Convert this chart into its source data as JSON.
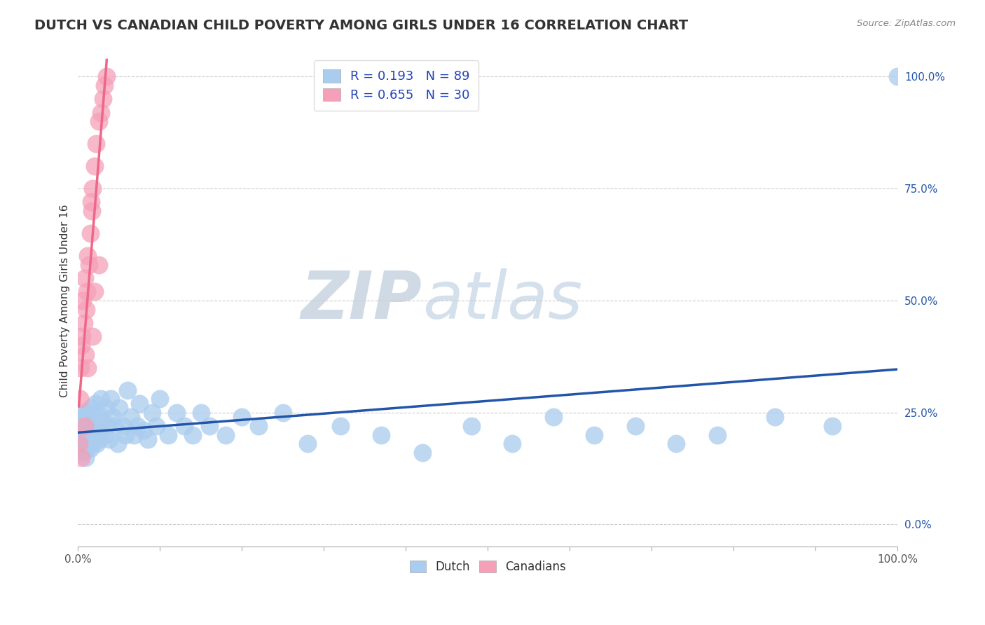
{
  "title": "DUTCH VS CANADIAN CHILD POVERTY AMONG GIRLS UNDER 16 CORRELATION CHART",
  "source": "Source: ZipAtlas.com",
  "ylabel": "Child Poverty Among Girls Under 16",
  "legend_dutch": "Dutch",
  "legend_canadians": "Canadians",
  "R_dutch": 0.193,
  "N_dutch": 89,
  "R_canadian": 0.655,
  "N_canadian": 30,
  "dutch_color": "#aaccee",
  "canadian_color": "#f5a0b8",
  "dutch_line_color": "#2255aa",
  "canadian_line_color": "#ee6688",
  "watermark_zip": "ZIP",
  "watermark_atlas": "atlas",
  "background_color": "#ffffff",
  "dutch_x": [
    0.001,
    0.002,
    0.002,
    0.003,
    0.003,
    0.003,
    0.004,
    0.004,
    0.005,
    0.005,
    0.005,
    0.006,
    0.006,
    0.007,
    0.007,
    0.008,
    0.008,
    0.008,
    0.009,
    0.009,
    0.01,
    0.01,
    0.011,
    0.011,
    0.012,
    0.012,
    0.013,
    0.014,
    0.015,
    0.015,
    0.016,
    0.017,
    0.018,
    0.018,
    0.019,
    0.02,
    0.021,
    0.022,
    0.023,
    0.024,
    0.025,
    0.026,
    0.028,
    0.03,
    0.032,
    0.034,
    0.035,
    0.038,
    0.04,
    0.042,
    0.045,
    0.048,
    0.05,
    0.055,
    0.058,
    0.06,
    0.065,
    0.068,
    0.072,
    0.075,
    0.08,
    0.085,
    0.09,
    0.095,
    0.1,
    0.11,
    0.12,
    0.13,
    0.14,
    0.15,
    0.16,
    0.18,
    0.2,
    0.22,
    0.25,
    0.28,
    0.32,
    0.37,
    0.42,
    0.48,
    0.53,
    0.58,
    0.63,
    0.68,
    0.73,
    0.78,
    0.85,
    0.92,
    1.0
  ],
  "dutch_y": [
    0.19,
    0.21,
    0.18,
    0.23,
    0.2,
    0.17,
    0.24,
    0.19,
    0.22,
    0.16,
    0.25,
    0.2,
    0.17,
    0.23,
    0.19,
    0.21,
    0.18,
    0.24,
    0.2,
    0.15,
    0.22,
    0.19,
    0.21,
    0.17,
    0.25,
    0.19,
    0.22,
    0.2,
    0.23,
    0.17,
    0.26,
    0.2,
    0.24,
    0.18,
    0.22,
    0.2,
    0.27,
    0.21,
    0.18,
    0.25,
    0.22,
    0.19,
    0.28,
    0.23,
    0.2,
    0.26,
    0.22,
    0.19,
    0.28,
    0.24,
    0.22,
    0.18,
    0.26,
    0.22,
    0.2,
    0.3,
    0.24,
    0.2,
    0.22,
    0.27,
    0.21,
    0.19,
    0.25,
    0.22,
    0.28,
    0.2,
    0.25,
    0.22,
    0.2,
    0.25,
    0.22,
    0.2,
    0.24,
    0.22,
    0.25,
    0.18,
    0.22,
    0.2,
    0.16,
    0.22,
    0.18,
    0.24,
    0.2,
    0.22,
    0.18,
    0.2,
    0.24,
    0.22,
    1.0
  ],
  "canadian_x": [
    0.001,
    0.002,
    0.003,
    0.004,
    0.005,
    0.006,
    0.007,
    0.008,
    0.009,
    0.01,
    0.011,
    0.012,
    0.013,
    0.015,
    0.016,
    0.017,
    0.018,
    0.02,
    0.022,
    0.025,
    0.028,
    0.03,
    0.032,
    0.035,
    0.018,
    0.02,
    0.025,
    0.012,
    0.008,
    0.004
  ],
  "canadian_y": [
    0.18,
    0.28,
    0.35,
    0.4,
    0.42,
    0.5,
    0.45,
    0.55,
    0.38,
    0.48,
    0.52,
    0.6,
    0.58,
    0.65,
    0.72,
    0.7,
    0.75,
    0.8,
    0.85,
    0.9,
    0.92,
    0.95,
    0.98,
    1.0,
    0.42,
    0.52,
    0.58,
    0.35,
    0.22,
    0.15
  ],
  "xlim": [
    0.0,
    1.0
  ],
  "ylim": [
    -0.05,
    1.05
  ],
  "ytick_positions": [
    0.0,
    0.25,
    0.5,
    0.75,
    1.0
  ],
  "ytick_labels": [
    "0.0%",
    "25.0%",
    "50.0%",
    "75.0%",
    "100.0%"
  ],
  "xtick_positions": [
    0.0,
    0.1,
    0.2,
    0.3,
    0.4,
    0.5,
    0.6,
    0.7,
    0.8,
    0.9,
    1.0
  ],
  "xtick_labels_show": [
    "0.0%",
    "100.0%"
  ],
  "grid_color": "#cccccc",
  "title_fontsize": 14,
  "axis_label_fontsize": 11,
  "tick_fontsize": 11,
  "legend_fontsize": 13
}
